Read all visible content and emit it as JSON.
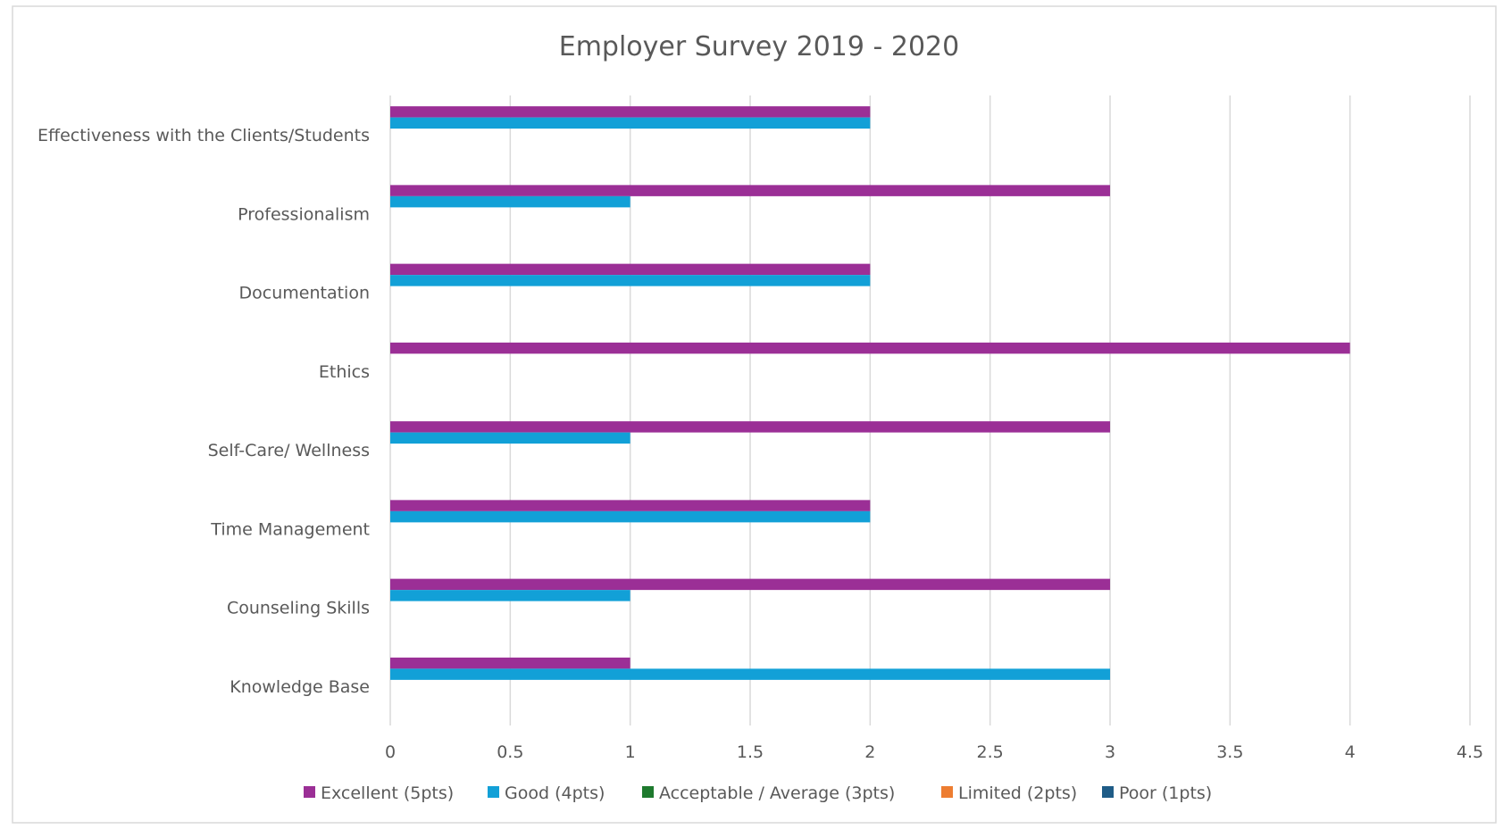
{
  "chart_data": {
    "type": "bar",
    "orientation": "horizontal",
    "title": "Employer  Survey 2019 - 2020",
    "xlabel": "",
    "ylabel": "",
    "xlim": [
      0,
      4.5
    ],
    "x_ticks": [
      "0",
      "0.5",
      "1",
      "1.5",
      "2",
      "2.5",
      "3",
      "3.5",
      "4",
      "4.5"
    ],
    "grid": "vertical",
    "legend_position": "bottom",
    "categories": [
      "Effectiveness with the  Clients/Students",
      "Professionalism",
      "Documentation",
      "Ethics",
      "Self-Care/ Wellness",
      "Time Management",
      "Counseling Skills",
      "Knowledge Base"
    ],
    "series": [
      {
        "name": "Excellent (5pts)",
        "color": "#9b2f96",
        "values": [
          2,
          3,
          2,
          4,
          3,
          2,
          3,
          1
        ]
      },
      {
        "name": "Good (4pts)",
        "color": "#12a0d7",
        "values": [
          2,
          1,
          2,
          0,
          1,
          2,
          1,
          3
        ]
      },
      {
        "name": "Acceptable / Average  (3pts)",
        "color": "#1e7a2e",
        "values": [
          0,
          0,
          0,
          0,
          0,
          0,
          0,
          0
        ]
      },
      {
        "name": "Limited (2pts)",
        "color": "#ed7d31",
        "values": [
          0,
          0,
          0,
          0,
          0,
          0,
          0,
          0
        ]
      },
      {
        "name": "Poor (1pts)",
        "color": "#1f5c87",
        "values": [
          0,
          0,
          0,
          0,
          0,
          0,
          0,
          0
        ]
      }
    ]
  }
}
